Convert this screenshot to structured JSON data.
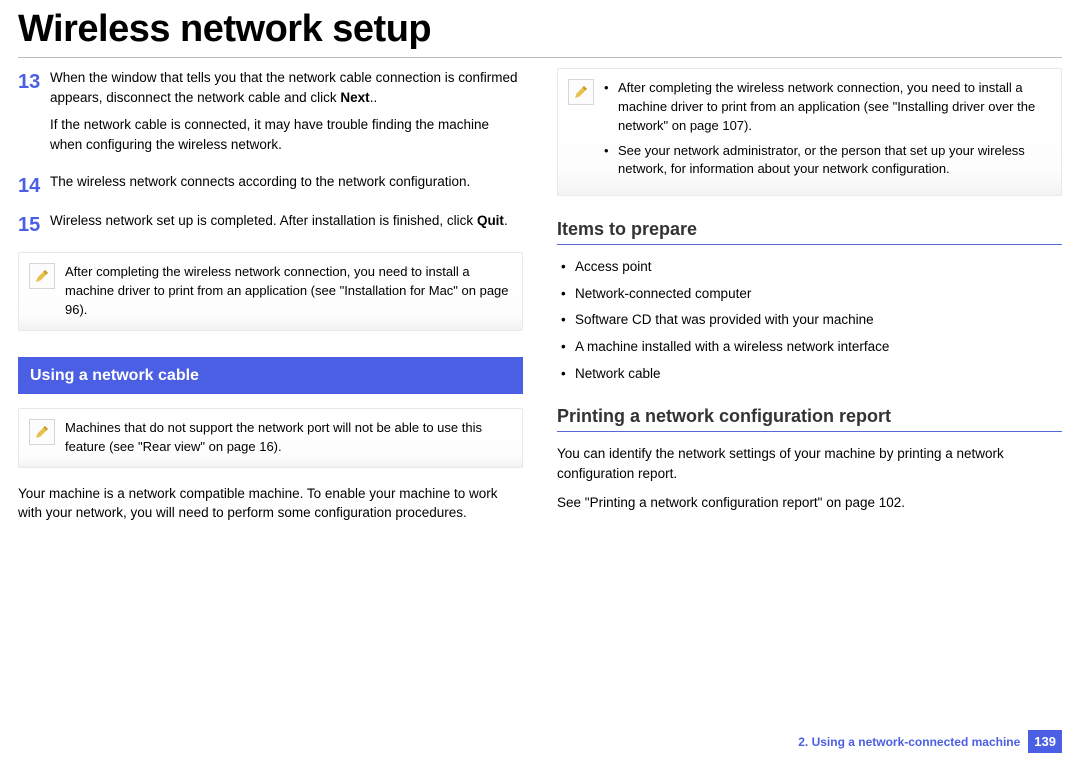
{
  "title": "Wireless network setup",
  "left": {
    "steps": [
      {
        "num": "13",
        "paras": [
          "When the window that tells you that the network cable connection is confirmed appears, disconnect the network cable and click <b>Next</b>..",
          "If the network cable is connected, it may have trouble finding the machine when configuring the wireless network."
        ]
      },
      {
        "num": "14",
        "paras": [
          "The wireless network connects according to the network configuration."
        ]
      },
      {
        "num": "15",
        "paras": [
          "Wireless network set up is completed. After installation is finished, click <b>Quit</b>."
        ]
      }
    ],
    "note1": "After completing the wireless network connection, you need to install a machine driver to print from an application (see \"Installation for Mac\" on page 96).",
    "section_bar": "Using a network cable",
    "note2": "Machines that do not support the network port will not be able to use this feature (see \"Rear view\" on page 16).",
    "body": "Your machine is a network compatible machine. To enable your machine to work with your network, you will need to perform some configuration procedures."
  },
  "right": {
    "note_items": [
      "After completing the wireless network connection, you need to install a machine driver to print from an application (see \"Installing driver over the network\" on page 107).",
      "See your network administrator, or the person that set up your wireless network, for information about your network configuration."
    ],
    "heading1": "Items to prepare",
    "items": [
      "Access point",
      "Network-connected computer",
      "Software CD that was provided with your machine",
      "A machine installed with a wireless network interface",
      "Network cable"
    ],
    "heading2": "Printing a network configuration report",
    "body1": "You can identify the network settings of your machine by printing a network configuration report.",
    "body2": "See \"Printing a network configuration report\" on page 102."
  },
  "footer": {
    "chapter": "2.  Using a network-connected machine",
    "page": "139"
  },
  "colors": {
    "accent": "#4a5fe4",
    "text": "#000000",
    "rule": "#bdbdbd"
  }
}
